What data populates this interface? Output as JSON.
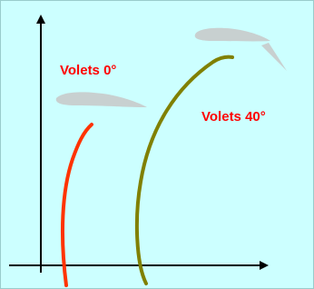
{
  "labels": {
    "flaps_0": "Volets  0°",
    "flaps_40": "Volets  40°"
  }
}
